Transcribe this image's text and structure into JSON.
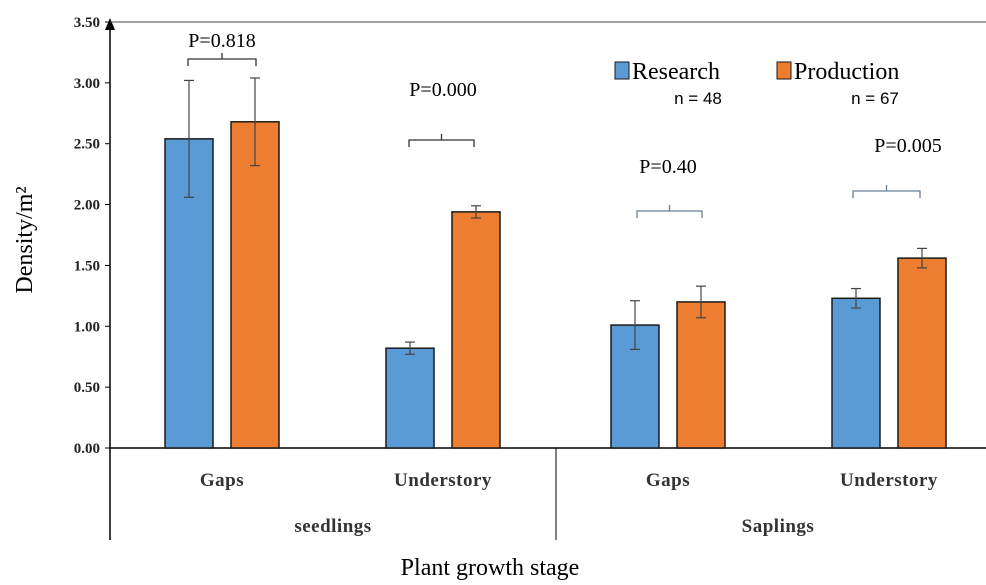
{
  "chart_data": {
    "type": "bar",
    "title": "",
    "xlabel": "Plant growth stage",
    "ylabel": "Density/m²",
    "ylim": [
      0,
      3.5
    ],
    "yticks": [
      "0.00",
      "0.50",
      "1.00",
      "1.50",
      "2.00",
      "2.50",
      "3.00",
      "3.50"
    ],
    "categories": [
      "Gaps",
      "Understory",
      "Gaps",
      "Understory"
    ],
    "groups": [
      {
        "label": "seedlings",
        "categories": [
          0,
          1
        ]
      },
      {
        "label": "Saplings",
        "categories": [
          2,
          3
        ]
      }
    ],
    "series": [
      {
        "name": "Research",
        "n_label": "n = 48",
        "color": "#5b9bd5",
        "values": [
          2.54,
          0.82,
          1.01,
          1.23
        ],
        "errors": [
          0.48,
          0.05,
          0.2,
          0.08
        ]
      },
      {
        "name": "Production",
        "n_label": "n = 67",
        "color": "#ed7d31",
        "values": [
          2.68,
          1.94,
          1.2,
          1.56
        ],
        "errors": [
          0.36,
          0.05,
          0.13,
          0.08
        ]
      }
    ],
    "annotations": [
      "P=0.818",
      "P=0.000",
      "P=0.40",
      "P=0.005"
    ],
    "legend_position": "top-right",
    "grid": false
  }
}
